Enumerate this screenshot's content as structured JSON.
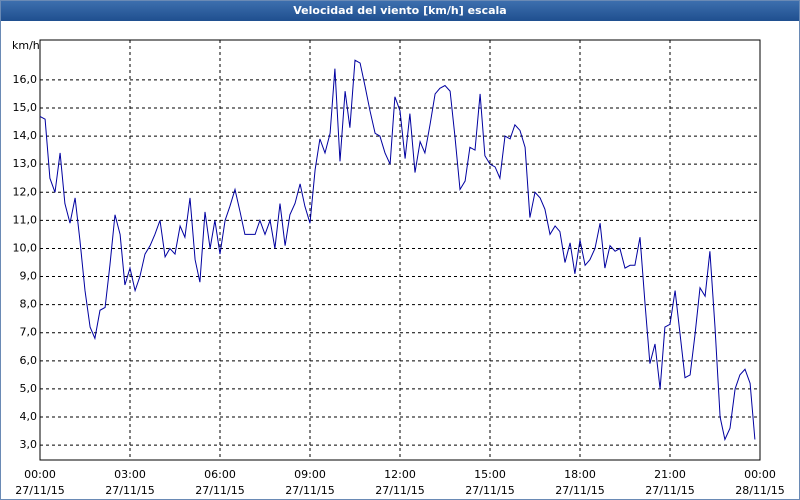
{
  "chart_data": {
    "type": "line",
    "title": "Velocidad del viento [km/h] escala",
    "y_label": "km/h",
    "x": [
      0,
      0.17,
      0.33,
      0.5,
      0.67,
      0.83,
      1,
      1.17,
      1.33,
      1.5,
      1.67,
      1.83,
      2,
      2.17,
      2.33,
      2.5,
      2.67,
      2.83,
      3,
      3.17,
      3.33,
      3.5,
      3.67,
      3.83,
      4,
      4.17,
      4.33,
      4.5,
      4.67,
      4.83,
      5,
      5.17,
      5.33,
      5.5,
      5.67,
      5.83,
      6,
      6.17,
      6.33,
      6.5,
      6.67,
      6.83,
      7,
      7.17,
      7.33,
      7.5,
      7.67,
      7.83,
      8,
      8.17,
      8.33,
      8.5,
      8.67,
      8.83,
      9,
      9.17,
      9.33,
      9.5,
      9.67,
      9.83,
      10,
      10.17,
      10.33,
      10.5,
      10.67,
      10.83,
      11,
      11.17,
      11.33,
      11.5,
      11.67,
      11.83,
      12,
      12.17,
      12.33,
      12.5,
      12.67,
      12.83,
      13,
      13.17,
      13.33,
      13.5,
      13.67,
      13.83,
      14,
      14.17,
      14.33,
      14.5,
      14.67,
      14.83,
      15,
      15.17,
      15.33,
      15.5,
      15.67,
      15.83,
      16,
      16.17,
      16.33,
      16.5,
      16.67,
      16.83,
      17,
      17.17,
      17.33,
      17.5,
      17.67,
      17.83,
      18,
      18.17,
      18.33,
      18.5,
      18.67,
      18.83,
      19,
      19.17,
      19.33,
      19.5,
      19.67,
      19.83,
      20,
      20.17,
      20.33,
      20.5,
      20.67,
      20.83,
      21,
      21.17,
      21.33,
      21.5,
      21.67,
      21.83,
      22,
      22.17,
      22.33,
      22.5,
      22.67,
      22.83,
      23,
      23.17,
      23.33,
      23.5,
      23.67,
      23.83
    ],
    "series": [
      {
        "color": "#0000a0",
        "values": [
          14.7,
          14.6,
          12.5,
          12.0,
          13.4,
          11.6,
          10.9,
          11.8,
          10.3,
          8.5,
          7.2,
          6.8,
          7.8,
          7.9,
          9.4,
          11.2,
          10.5,
          8.7,
          9.3,
          8.5,
          9.0,
          9.8,
          10.1,
          10.5,
          11.0,
          9.7,
          10.0,
          9.8,
          10.8,
          10.4,
          11.8,
          9.6,
          8.8,
          11.3,
          10.0,
          11.0,
          9.8,
          11.0,
          11.5,
          12.1,
          11.3,
          10.5,
          10.5,
          10.5,
          11.0,
          10.5,
          11.0,
          10.0,
          11.6,
          10.1,
          11.2,
          11.6,
          12.3,
          11.5,
          10.9,
          12.8,
          13.9,
          13.4,
          14.1,
          16.4,
          13.1,
          15.6,
          14.3,
          16.7,
          16.6,
          15.8,
          14.9,
          14.1,
          14.0,
          13.4,
          13.0,
          15.4,
          14.9,
          13.2,
          14.8,
          12.7,
          13.8,
          13.4,
          14.4,
          15.5,
          15.7,
          15.8,
          15.6,
          14.0,
          12.1,
          12.4,
          13.6,
          13.5,
          15.5,
          13.3,
          13.0,
          12.9,
          12.5,
          14.0,
          13.9,
          14.4,
          14.2,
          13.6,
          11.1,
          12.0,
          11.8,
          11.4,
          10.5,
          10.8,
          10.6,
          9.5,
          10.2,
          9.1,
          10.3,
          9.4,
          9.6,
          10.0,
          10.9,
          9.3,
          10.1,
          9.9,
          10.0,
          9.3,
          9.4,
          9.4,
          10.4,
          8.0,
          5.9,
          6.6,
          5.0,
          7.2,
          7.3,
          8.5,
          7.0,
          5.4,
          5.5,
          6.9,
          8.6,
          8.3,
          9.9,
          7.2,
          4.0,
          3.2,
          3.6,
          5.0,
          5.5,
          5.7,
          5.2,
          3.2
        ]
      }
    ],
    "xlim": [
      0,
      24
    ],
    "ylim": [
      2.47,
      17.42
    ],
    "xticks": [
      {
        "value": 0,
        "label": "00:00"
      },
      {
        "value": 3,
        "label": "03:00"
      },
      {
        "value": 6,
        "label": "06:00"
      },
      {
        "value": 9,
        "label": "09:00"
      },
      {
        "value": 12,
        "label": "12:00"
      },
      {
        "value": 15,
        "label": "15:00"
      },
      {
        "value": 18,
        "label": "18:00"
      },
      {
        "value": 21,
        "label": "21:00"
      },
      {
        "value": 24,
        "label": "00:00"
      }
    ],
    "xtick_dates": [
      "27/11/15",
      "27/11/15",
      "27/11/15",
      "27/11/15",
      "27/11/15",
      "27/11/15",
      "27/11/15",
      "27/11/15",
      "28/11/15"
    ],
    "yticks": [
      {
        "value": 3,
        "label": "3,0"
      },
      {
        "value": 4,
        "label": "4,0"
      },
      {
        "value": 5,
        "label": "5,0"
      },
      {
        "value": 6,
        "label": "6,0"
      },
      {
        "value": 7,
        "label": "7,0"
      },
      {
        "value": 8,
        "label": "8,0"
      },
      {
        "value": 9,
        "label": "9,0"
      },
      {
        "value": 10,
        "label": "10,0"
      },
      {
        "value": 11,
        "label": "11,0"
      },
      {
        "value": 12,
        "label": "12,0"
      },
      {
        "value": 13,
        "label": "13,0"
      },
      {
        "value": 14,
        "label": "14,0"
      },
      {
        "value": 15,
        "label": "15,0"
      },
      {
        "value": 16,
        "label": "16,0"
      }
    ],
    "grid": true
  }
}
